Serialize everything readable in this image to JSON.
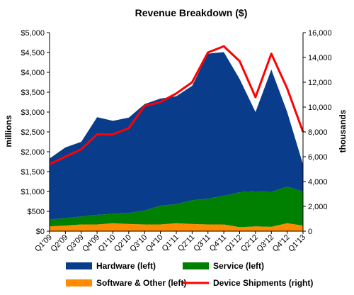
{
  "chart_data": {
    "type": "area",
    "title": "Revenue Breakdown ($)",
    "ylabel_left": "millions",
    "ylabel_right": "thousands",
    "categories": [
      "Q1'09",
      "Q2'09",
      "Q3'09",
      "Q4'09",
      "Q1'10",
      "Q2'10",
      "Q3'10",
      "Q4'10",
      "Q1'11",
      "Q2'11",
      "Q3'11",
      "Q4'11",
      "Q1'12",
      "Q2'12",
      "Q3'12",
      "Q4'12",
      "Q1'13"
    ],
    "x_tick_labels": [
      "Q1'09",
      "Q2'09",
      "Q3'09",
      "Q4'09",
      "Q1'10",
      "Q2'10",
      "Q3'10",
      "Q4'10",
      "Q1'11",
      "Q2'11",
      "Q3'11",
      "Q4'11",
      "Q1'12",
      "Q2'12",
      "Q3'12",
      "Q4'12",
      "Q1'13"
    ],
    "y_left": {
      "min": 0,
      "max": 5000,
      "ticks": [
        0,
        500,
        1000,
        1500,
        2000,
        2500,
        3000,
        3500,
        4000,
        4500,
        5000
      ],
      "tick_labels": [
        "$0",
        "$500",
        "$1,000",
        "$1,500",
        "$2,000",
        "$2,500",
        "$3,000",
        "$3,500",
        "$4,000",
        "$4,500",
        "$5,000"
      ]
    },
    "y_right": {
      "min": 0,
      "max": 16000,
      "ticks": [
        0,
        2000,
        4000,
        6000,
        8000,
        10000,
        12000,
        14000,
        16000
      ],
      "tick_labels": [
        "0",
        "2,000",
        "4,000",
        "6,000",
        "8,000",
        "10,000",
        "12,000",
        "14,000",
        "16,000"
      ]
    },
    "stacked": true,
    "series": [
      {
        "name": "Software & Other (left)",
        "axis": "left",
        "kind": "area",
        "color": "#ff8c00",
        "values": [
          120,
          140,
          170,
          170,
          200,
          180,
          170,
          170,
          200,
          180,
          170,
          170,
          100,
          120,
          110,
          200,
          140
        ]
      },
      {
        "name": "Service (left)",
        "axis": "left",
        "kind": "area",
        "color": "#008000",
        "values": [
          170,
          190,
          200,
          240,
          240,
          280,
          350,
          470,
          480,
          600,
          650,
          720,
          880,
          880,
          880,
          920,
          860
        ]
      },
      {
        "name": "Hardware (left)",
        "axis": "left",
        "kind": "area",
        "color": "#0a3c8c",
        "values": [
          1540,
          1780,
          1880,
          2460,
          2340,
          2400,
          2680,
          2700,
          2720,
          2880,
          3650,
          3620,
          2850,
          2000,
          3080,
          1880,
          680
        ]
      },
      {
        "name": "Device Shipments (right)",
        "axis": "right",
        "kind": "line",
        "color": "#ff0000",
        "values": [
          5400,
          6000,
          6600,
          7800,
          7800,
          8300,
          10100,
          10400,
          11100,
          12000,
          14400,
          14900,
          13700,
          10800,
          14300,
          11500,
          8000
        ]
      }
    ],
    "legend_placement": "bottom",
    "grid": false
  }
}
